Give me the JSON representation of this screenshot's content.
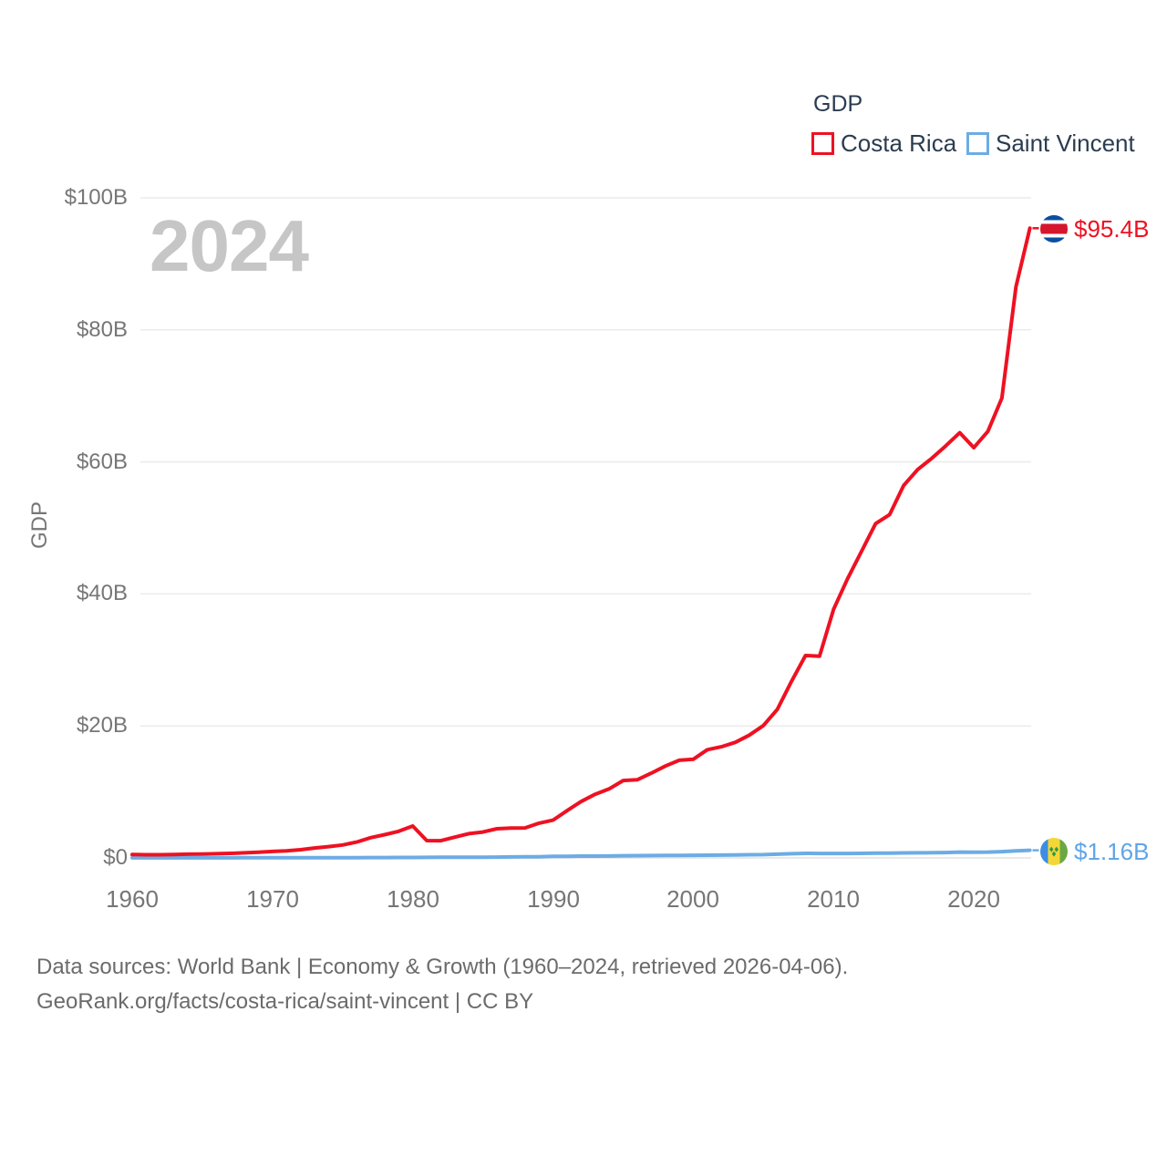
{
  "watermark_year": "2024",
  "legend": {
    "title": "GDP",
    "items": [
      {
        "label": "Costa Rica",
        "color": "#ee1122"
      },
      {
        "label": "Saint Vincent",
        "color": "#6cace4"
      }
    ]
  },
  "y_axis": {
    "title": "GDP",
    "ticks": [
      "$0",
      "$20B",
      "$40B",
      "$60B",
      "$80B",
      "$100B"
    ]
  },
  "x_axis": {
    "ticks": [
      "1960",
      "1970",
      "1980",
      "1990",
      "2000",
      "2010",
      "2020"
    ]
  },
  "end_labels": {
    "costa_rica": {
      "value": "$95.4B",
      "flag": "costa-rica-flag-icon"
    },
    "saint_vincent": {
      "value": "$1.16B",
      "flag": "saint-vincent-flag-icon"
    }
  },
  "footer": {
    "line1": "Data sources: World Bank | Economy & Growth (1960–2024, retrieved 2026-04-06).",
    "line2": "GeoRank.org/facts/costa-rica/saint-vincent | CC BY"
  },
  "chart_data": {
    "type": "line",
    "title": "GDP",
    "ylabel": "GDP",
    "xlabel": "",
    "x_range": [
      1960,
      2024
    ],
    "ylim_billions": [
      0,
      100
    ],
    "x_ticks": [
      1960,
      1970,
      1980,
      1990,
      2000,
      2010,
      2020
    ],
    "y_ticks_billions": [
      0,
      20,
      40,
      60,
      80,
      100
    ],
    "grid": "horizontal",
    "legend_position": "top-right",
    "highlight_year": 2024,
    "years": [
      1960,
      1961,
      1962,
      1963,
      1964,
      1965,
      1966,
      1967,
      1968,
      1969,
      1970,
      1971,
      1972,
      1973,
      1974,
      1975,
      1976,
      1977,
      1978,
      1979,
      1980,
      1981,
      1982,
      1983,
      1984,
      1985,
      1986,
      1987,
      1988,
      1989,
      1990,
      1991,
      1992,
      1993,
      1994,
      1995,
      1996,
      1997,
      1998,
      1999,
      2000,
      2001,
      2002,
      2003,
      2004,
      2005,
      2006,
      2007,
      2008,
      2009,
      2010,
      2011,
      2012,
      2013,
      2014,
      2015,
      2016,
      2017,
      2018,
      2019,
      2020,
      2021,
      2022,
      2023,
      2024
    ],
    "series": [
      {
        "name": "Costa Rica",
        "color": "#ee1122",
        "end_label": "$95.4B",
        "end_value_billions": 95.4,
        "values_billions": [
          0.51,
          0.49,
          0.48,
          0.52,
          0.57,
          0.59,
          0.64,
          0.69,
          0.77,
          0.85,
          0.98,
          1.08,
          1.24,
          1.51,
          1.71,
          1.96,
          2.41,
          3.07,
          3.52,
          4.04,
          4.83,
          2.62,
          2.61,
          3.15,
          3.67,
          3.92,
          4.42,
          4.53,
          4.55,
          5.26,
          5.72,
          7.16,
          8.54,
          9.64,
          10.45,
          11.72,
          11.84,
          12.83,
          13.91,
          14.79,
          14.95,
          16.4,
          16.84,
          17.52,
          18.6,
          20.05,
          22.53,
          26.74,
          30.66,
          30.56,
          37.66,
          42.29,
          46.47,
          50.65,
          52.02,
          56.44,
          58.85,
          60.52,
          62.42,
          64.42,
          62.16,
          64.61,
          69.67,
          86.5,
          95.4
        ]
      },
      {
        "name": "Saint Vincent",
        "color": "#6cace4",
        "end_label": "$1.16B",
        "end_value_billions": 1.16,
        "values_billions": [
          0.013,
          0.014,
          0.015,
          0.016,
          0.016,
          0.017,
          0.018,
          0.019,
          0.021,
          0.022,
          0.024,
          0.027,
          0.029,
          0.031,
          0.035,
          0.039,
          0.045,
          0.051,
          0.06,
          0.068,
          0.075,
          0.087,
          0.095,
          0.1,
          0.107,
          0.116,
          0.131,
          0.148,
          0.17,
          0.182,
          0.24,
          0.253,
          0.27,
          0.28,
          0.29,
          0.33,
          0.34,
          0.355,
          0.373,
          0.39,
          0.397,
          0.412,
          0.426,
          0.45,
          0.49,
          0.5,
          0.56,
          0.64,
          0.695,
          0.675,
          0.681,
          0.676,
          0.693,
          0.721,
          0.727,
          0.755,
          0.774,
          0.785,
          0.811,
          0.88,
          0.872,
          0.89,
          0.947,
          1.07,
          1.16
        ]
      }
    ]
  }
}
